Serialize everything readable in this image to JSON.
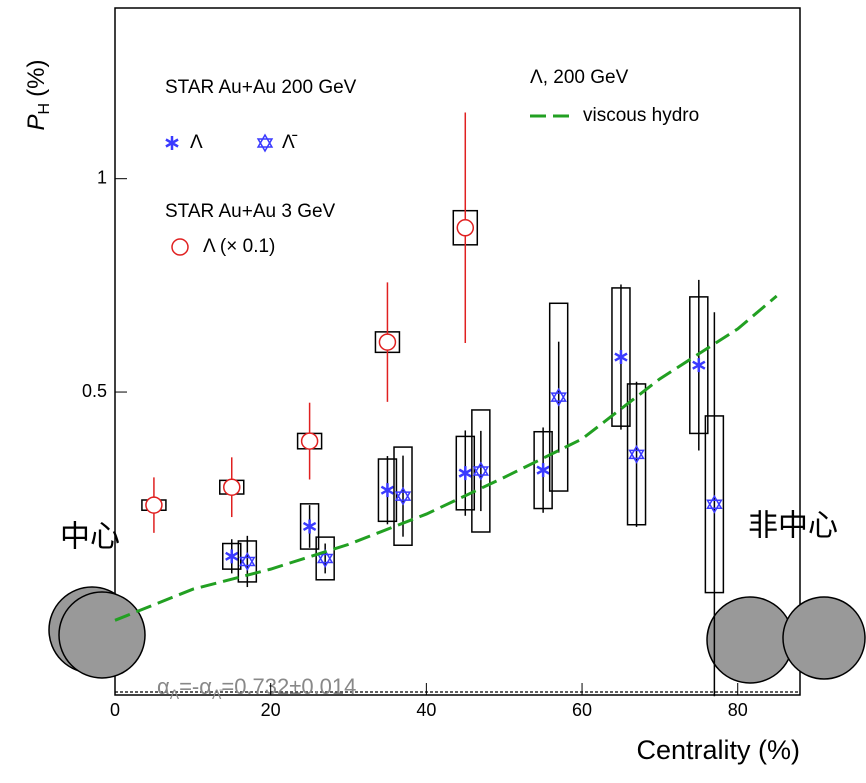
{
  "chart_data": {
    "type": "scatter",
    "y_label_parts": [
      "P",
      "H",
      "(%)"
    ],
    "x_label": "Centrality (%)",
    "xlim": [
      0,
      88
    ],
    "ylim": [
      -0.21,
      1.4
    ],
    "xticks": [
      0,
      20,
      40,
      60,
      80
    ],
    "yticks": [
      0.5,
      1
    ],
    "legend_headers": [
      "STAR Au+Au 200 GeV",
      "STAR Au+Au 3 GeV",
      "Λ, 200 GeV"
    ],
    "series": [
      {
        "name": "Λ",
        "color": "#3a3aff",
        "marker": "star",
        "x": [
          15,
          25,
          35,
          45,
          55,
          65,
          75
        ],
        "values": [
          0.115,
          0.185,
          0.27,
          0.31,
          0.317,
          0.582,
          0.563
        ],
        "errors": [
          0.04,
          0.05,
          0.08,
          0.1,
          0.1,
          0.17,
          0.2
        ],
        "sys": [
          0.03,
          0.053,
          0.073,
          0.086,
          0.09,
          0.162,
          0.16
        ]
      },
      {
        "name": "Λ̄",
        "color": "#3a3aff",
        "marker": "open-star",
        "x": [
          17,
          27,
          37,
          47,
          57,
          67,
          77
        ],
        "values": [
          0.103,
          0.11,
          0.256,
          0.315,
          0.488,
          0.354,
          0.237
        ],
        "errors": [
          0.06,
          0.035,
          0.095,
          0.094,
          0.13,
          0.17,
          0.45
        ],
        "sys": [
          0.048,
          0.05,
          0.115,
          0.143,
          0.22,
          0.165,
          0.207
        ]
      },
      {
        "name": "Λ (× 0.1)",
        "color": "#e02020",
        "marker": "open-circle",
        "x": [
          5,
          15,
          25,
          35,
          45
        ],
        "values": [
          0.235,
          0.277,
          0.385,
          0.617,
          0.885
        ],
        "errors": [
          0.065,
          0.07,
          0.09,
          0.14,
          0.27
        ],
        "sys": [
          0.012,
          0.016,
          0.018,
          0.024,
          0.04
        ]
      },
      {
        "name": "viscous hydro",
        "color": "#22a022",
        "marker": "dashed-line",
        "x": [
          0,
          10,
          20,
          30,
          40,
          50,
          60,
          70,
          80,
          85
        ],
        "values": [
          -0.035,
          0.038,
          0.085,
          0.143,
          0.214,
          0.3,
          0.39,
          0.531,
          0.648,
          0.725
        ]
      }
    ],
    "annotation_parts": [
      "α",
      "Λ",
      "=-α",
      "Λ̄",
      "=0.732±0.014"
    ],
    "side_labels": [
      "中心",
      "非中心"
    ]
  }
}
